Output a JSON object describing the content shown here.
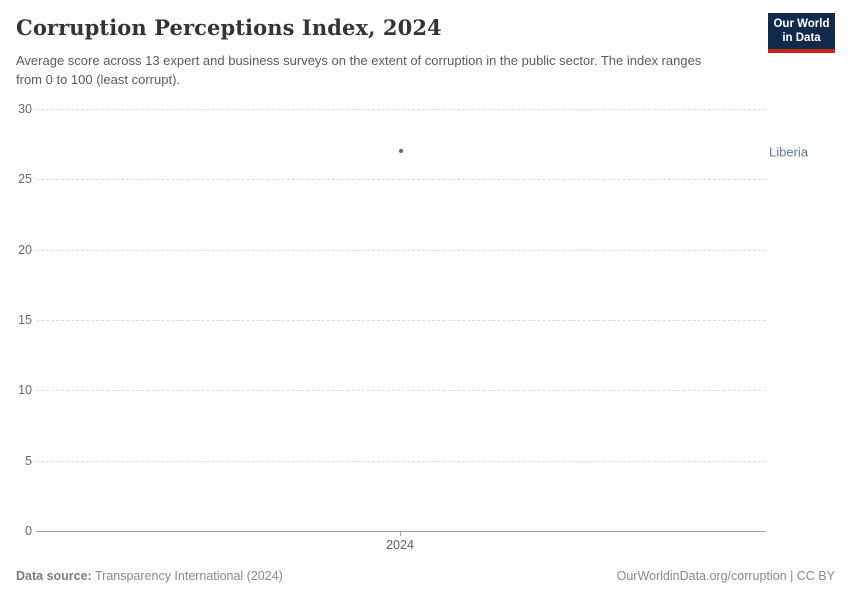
{
  "header": {
    "title": "Corruption Perceptions Index, 2024",
    "subtitle": "Average score across 13 expert and business surveys on the extent of corruption in the public sector. The index ranges from 0 to 100 (least corrupt).",
    "logo": {
      "line1": "Our World",
      "line2": "in Data",
      "bg_color": "#12294e",
      "stripe_color": "#c5271e"
    }
  },
  "chart_data": {
    "type": "scatter",
    "title": "Corruption Perceptions Index, 2024",
    "xlabel": "",
    "ylabel": "",
    "ylim": [
      0,
      30
    ],
    "yticks": [
      0,
      5,
      10,
      15,
      20,
      25,
      30
    ],
    "xticks": [
      "2024"
    ],
    "grid": "horizontal-dashed",
    "legend_position": "right-entity-label",
    "series": [
      {
        "name": "Liberia",
        "x": [
          2024
        ],
        "values": [
          27
        ],
        "color": "#4c6a9c"
      }
    ]
  },
  "colors": {
    "point": "#4c6a9c",
    "entity_label": "#5b7cb0",
    "gridline": "#dcdcdc",
    "axis_line": "#a3a3a3",
    "ytick_text": "#696969",
    "xtick_text": "#5f5f5f"
  },
  "footer": {
    "source_label": "Data source:",
    "source_text": "Transparency International (2024)",
    "rights": "OurWorldinData.org/corruption | CC BY"
  }
}
